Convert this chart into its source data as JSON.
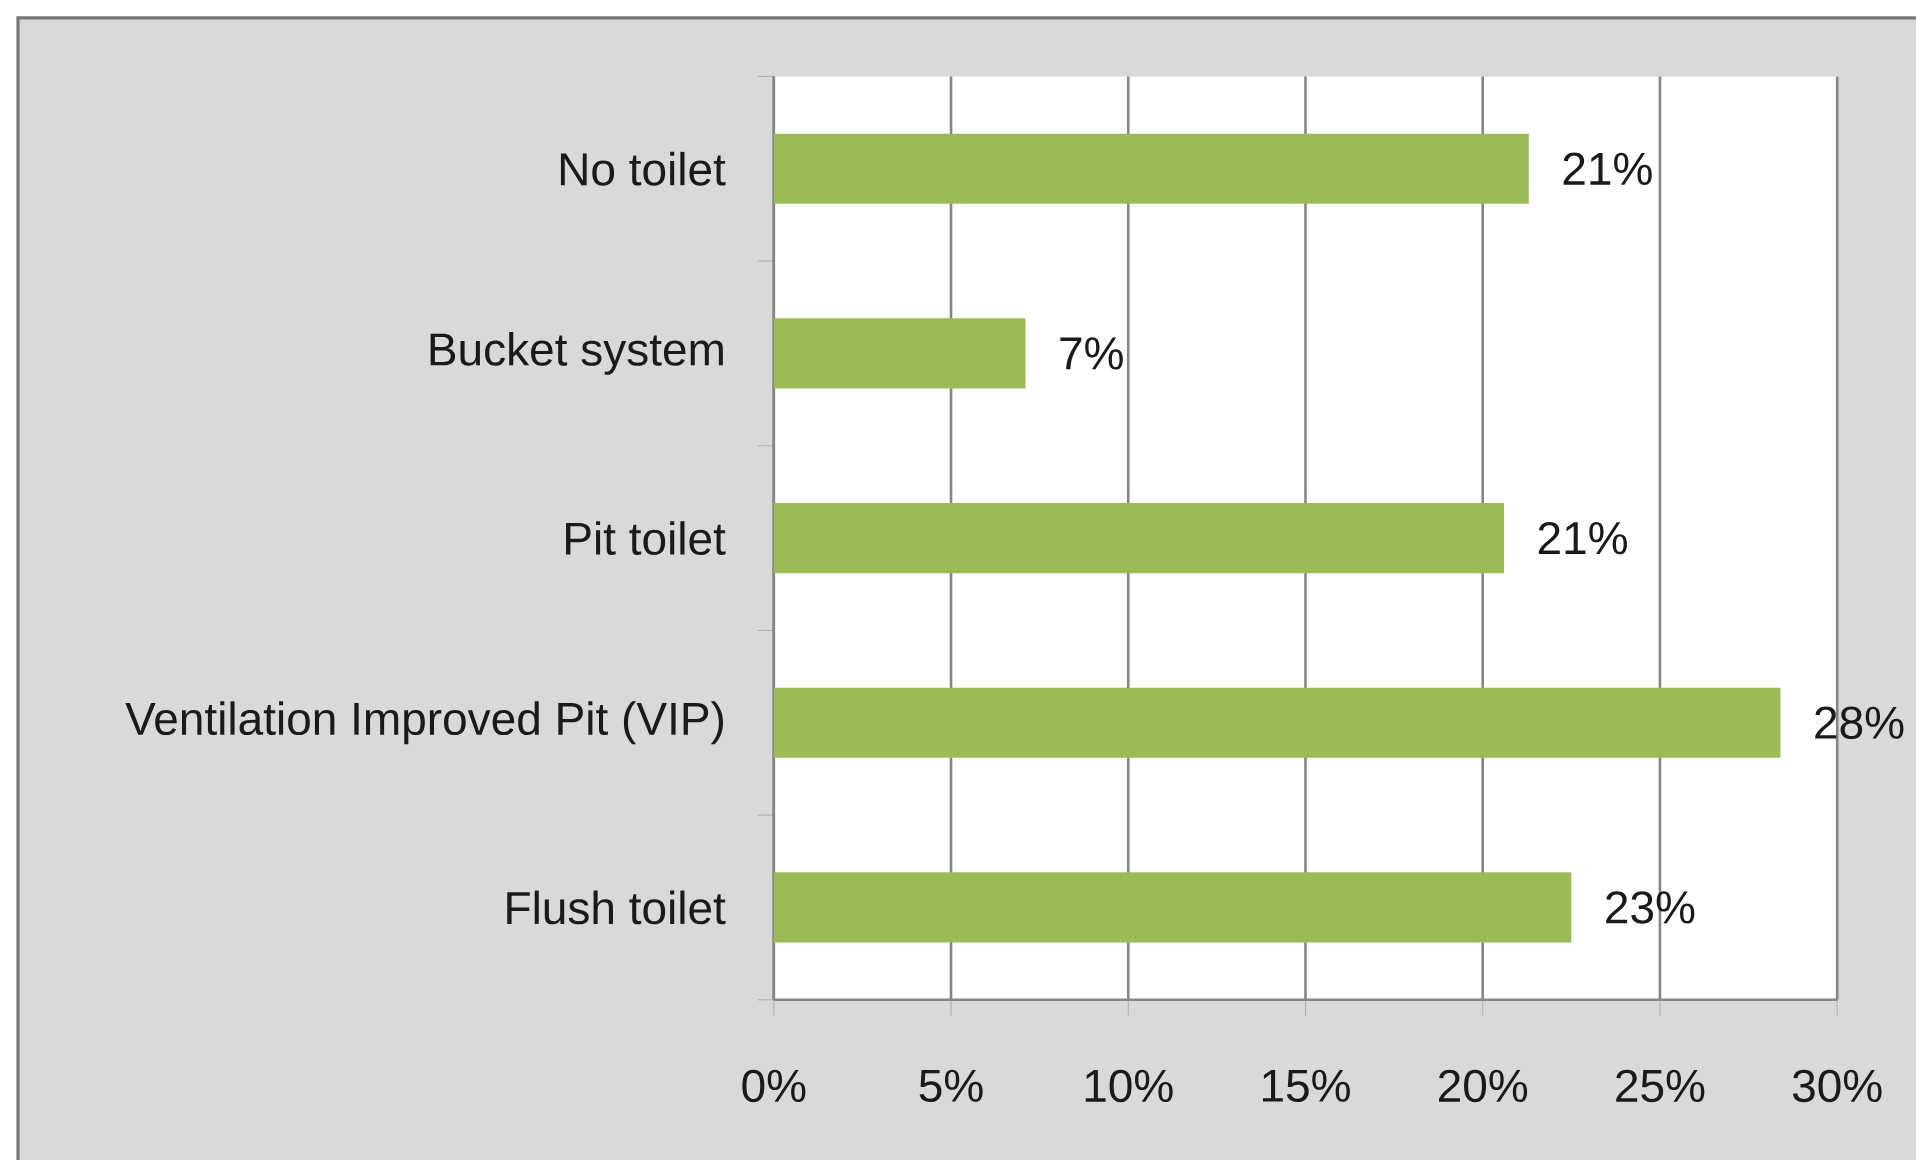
{
  "chart_data": {
    "type": "bar",
    "orientation": "horizontal",
    "categories": [
      "No toilet",
      "Bucket system",
      "Pit toilet",
      "Ventilation Improved Pit (VIP)",
      "Flush toilet"
    ],
    "values": [
      21.3,
      7.1,
      20.6,
      28.4,
      22.5
    ],
    "value_labels": [
      "21%",
      "7%",
      "21%",
      "28%",
      "23%"
    ],
    "color": "#9bbb59",
    "xlim": [
      0,
      30
    ],
    "xticks": [
      {
        "value": 0,
        "label": "0%"
      },
      {
        "value": 5,
        "label": "5%"
      },
      {
        "value": 10,
        "label": "10%"
      },
      {
        "value": 15,
        "label": "15%"
      },
      {
        "value": 20,
        "label": "20%"
      },
      {
        "value": 25,
        "label": "25%"
      },
      {
        "value": 30,
        "label": "30%"
      }
    ],
    "grid": "x"
  }
}
